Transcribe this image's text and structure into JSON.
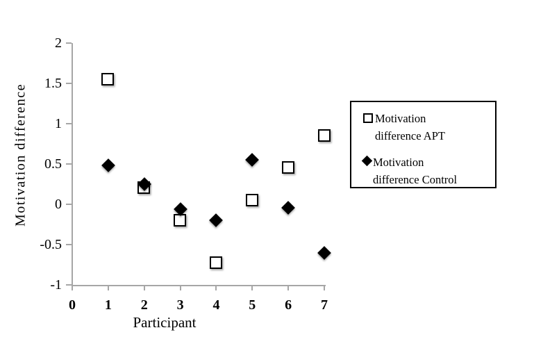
{
  "chart_data": {
    "type": "scatter",
    "title": "",
    "xlabel": "Participant",
    "ylabel": "Motivation difference",
    "xlim": [
      0,
      7
    ],
    "ylim": [
      -1,
      2
    ],
    "x_tick_labels": [
      "0",
      "1",
      "2",
      "3",
      "4",
      "5",
      "6",
      "7"
    ],
    "x_tick_values": [
      0,
      1,
      2,
      3,
      4,
      5,
      6,
      7
    ],
    "y_tick_labels": [
      "2",
      "1.5",
      "1",
      "0.5",
      "0",
      "-0.5",
      "-1"
    ],
    "y_tick_values": [
      2,
      1.5,
      1,
      0.5,
      0,
      -0.5,
      -1
    ],
    "grid": false,
    "legend_position": "right",
    "x": [
      1,
      2,
      3,
      4,
      5,
      6,
      7
    ],
    "series": [
      {
        "name": "Motivation difference APT",
        "marker": "open-square",
        "fill": "#ffffff",
        "stroke": "#000000",
        "values": [
          1.55,
          0.2,
          -0.2,
          -0.73,
          0.05,
          0.45,
          0.85
        ]
      },
      {
        "name": "Motivation difference Control",
        "marker": "filled-diamond",
        "fill": "#000000",
        "stroke": "#000000",
        "values": [
          0.48,
          0.25,
          -0.06,
          -0.2,
          0.55,
          -0.04,
          -0.6
        ]
      }
    ],
    "colors": {
      "axis": "#a6a6a6",
      "text": "#000000",
      "background": "#ffffff",
      "legend_border": "#000000"
    }
  },
  "legend": {
    "items": [
      {
        "marker": "open-square-icon",
        "line1": "Motivation",
        "line2": "difference APT"
      },
      {
        "marker": "filled-diamond-icon",
        "line1": "Motivation",
        "line2": "difference Control"
      }
    ]
  }
}
